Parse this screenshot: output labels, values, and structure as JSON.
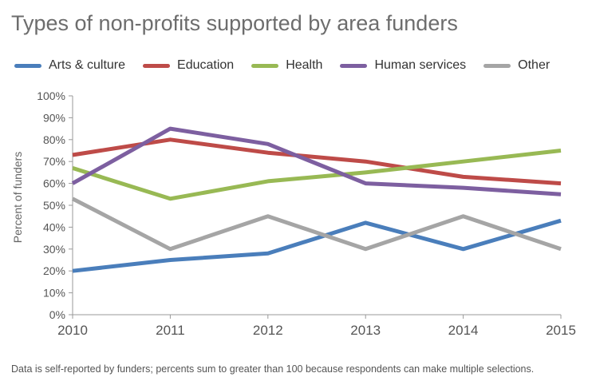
{
  "chart_data": {
    "type": "line",
    "title": "Types of non-profits supported by area funders",
    "ylabel": "Percent of funders",
    "xlabel": "",
    "x": [
      "2010",
      "2011",
      "2012",
      "2013",
      "2014",
      "2015"
    ],
    "ylim": [
      0,
      100
    ],
    "yticks": [
      "0%",
      "10%",
      "20%",
      "30%",
      "40%",
      "50%",
      "60%",
      "70%",
      "80%",
      "90%",
      "100%"
    ],
    "grid": false,
    "legend_position": "top",
    "series": [
      {
        "name": "Arts & culture",
        "color": "#4a7ebb",
        "values": [
          20,
          25,
          28,
          42,
          30,
          43
        ]
      },
      {
        "name": "Education",
        "color": "#be4b48",
        "values": [
          73,
          80,
          74,
          70,
          63,
          60
        ]
      },
      {
        "name": "Health",
        "color": "#98b954",
        "values": [
          67,
          53,
          61,
          65,
          70,
          75
        ]
      },
      {
        "name": "Human services",
        "color": "#7d5fa0",
        "values": [
          60,
          85,
          78,
          60,
          58,
          55
        ]
      },
      {
        "name": "Other",
        "color": "#a5a5a5",
        "values": [
          53,
          30,
          45,
          30,
          45,
          30
        ]
      }
    ],
    "note": "Data is self-reported by funders; percents sum to greater than 100 because respondents can make multiple selections."
  }
}
